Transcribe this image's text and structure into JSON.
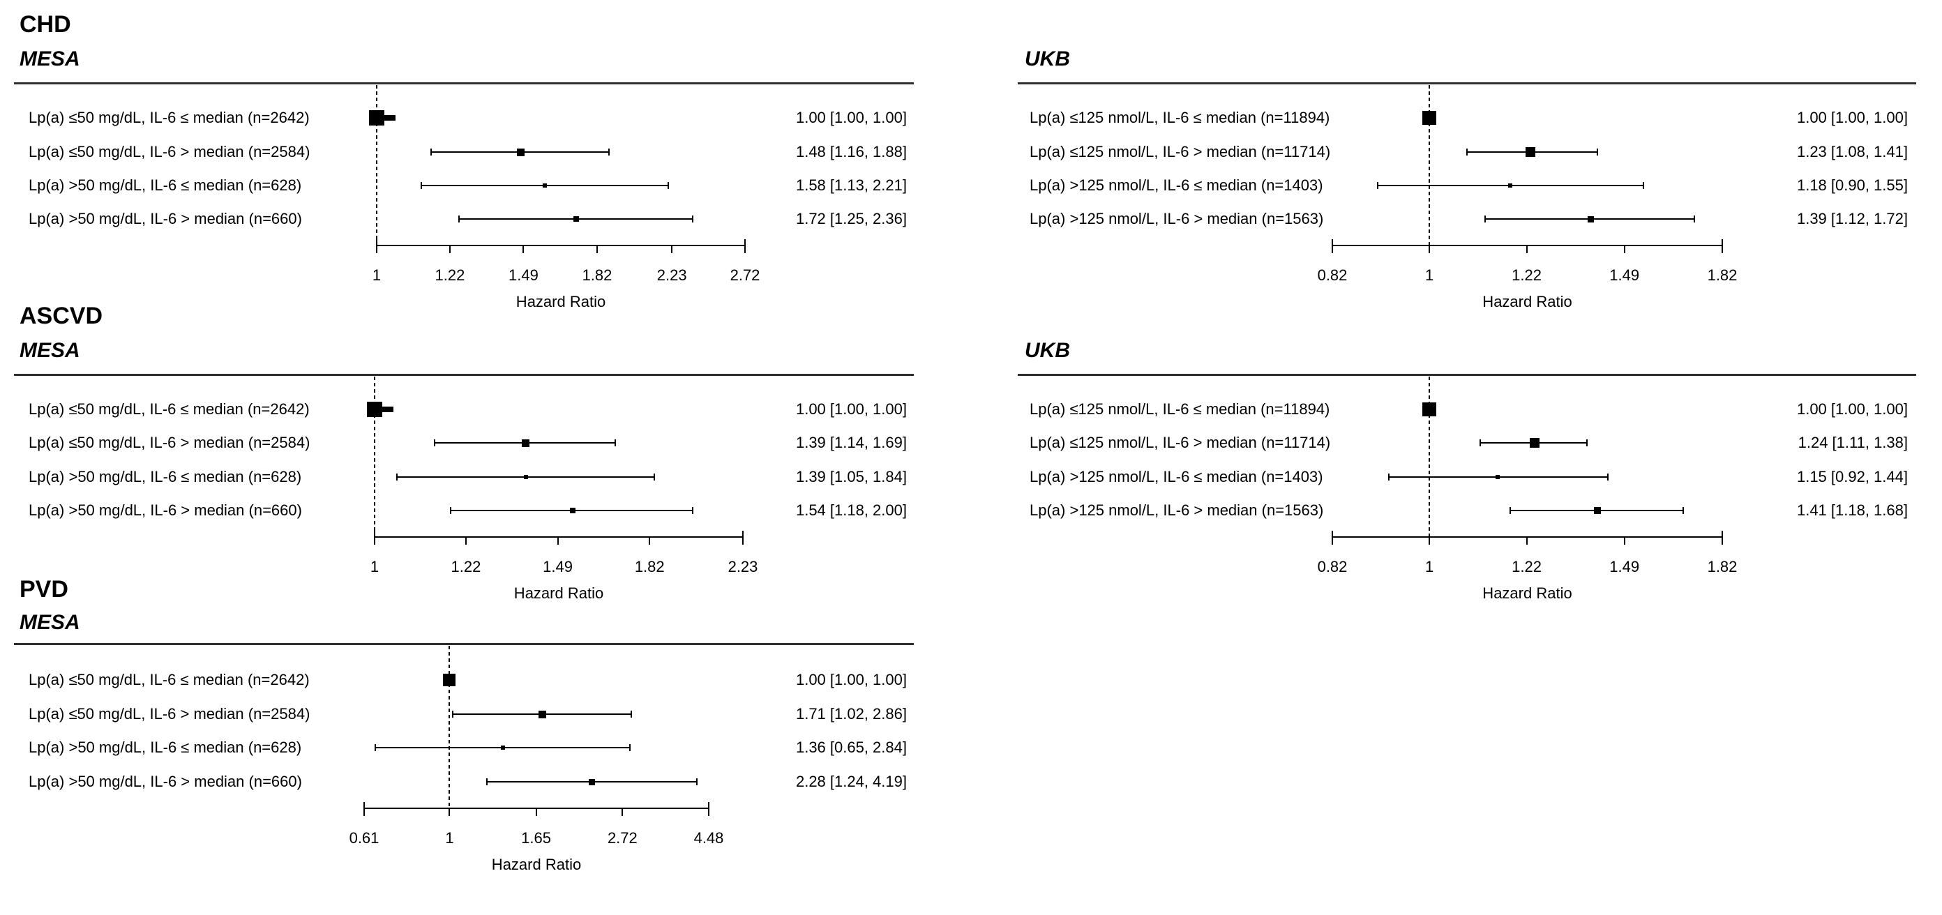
{
  "figure": {
    "background": "#ffffff",
    "text_color": "#000000",
    "marker_color": "#000000",
    "rule_color": "#2e2e2e"
  },
  "chart_data": [
    {
      "type": "scatter",
      "id": "chd-mesa",
      "outcome": "CHD",
      "cohort": "MESA",
      "xlabel": "Hazard Ratio",
      "scale": "log",
      "axis_ticks": [
        1,
        1.22,
        1.49,
        1.82,
        2.23,
        2.72
      ],
      "ref_value": 1,
      "rows": [
        {
          "label": "Lp(a) ≤50 mg/dL, IL-6 ≤ median (n=2642)",
          "est": 1.0,
          "lo": 1.0,
          "hi": 1.0,
          "text": "1.00 [1.00, 1.00]",
          "marker_size": 22,
          "nub": true
        },
        {
          "label": "Lp(a) ≤50 mg/dL, IL-6 > median (n=2584)",
          "est": 1.48,
          "lo": 1.16,
          "hi": 1.88,
          "text": "1.48 [1.16, 1.88]",
          "marker_size": 11,
          "nub": false
        },
        {
          "label": "Lp(a) >50 mg/dL, IL-6 ≤ median (n=628)",
          "est": 1.58,
          "lo": 1.13,
          "hi": 2.21,
          "text": "1.58 [1.13, 2.21]",
          "marker_size": 6,
          "nub": false
        },
        {
          "label": "Lp(a) >50 mg/dL, IL-6 > median (n=660)",
          "est": 1.72,
          "lo": 1.25,
          "hi": 2.36,
          "text": "1.72 [1.25, 2.36]",
          "marker_size": 8,
          "nub": false
        }
      ]
    },
    {
      "type": "scatter",
      "id": "chd-ukb",
      "outcome": "CHD",
      "cohort": "UKB",
      "xlabel": "Hazard Ratio",
      "scale": "log",
      "axis_ticks": [
        0.82,
        1,
        1.22,
        1.49,
        1.82
      ],
      "ref_value": 1,
      "rows": [
        {
          "label": "Lp(a) ≤125 nmol/L, IL-6 ≤ median (n=11894)",
          "est": 1.0,
          "lo": 1.0,
          "hi": 1.0,
          "text": "1.00 [1.00, 1.00]",
          "marker_size": 20,
          "nub": false
        },
        {
          "label": "Lp(a) ≤125 nmol/L, IL-6 > median (n=11714)",
          "est": 1.23,
          "lo": 1.08,
          "hi": 1.41,
          "text": "1.23 [1.08, 1.41]",
          "marker_size": 14,
          "nub": false
        },
        {
          "label": "Lp(a) >125 nmol/L, IL-6 ≤ median (n=1403)",
          "est": 1.18,
          "lo": 0.9,
          "hi": 1.55,
          "text": "1.18 [0.90, 1.55]",
          "marker_size": 6,
          "nub": false
        },
        {
          "label": "Lp(a) >125 nmol/L, IL-6 > median (n=1563)",
          "est": 1.39,
          "lo": 1.12,
          "hi": 1.72,
          "text": "1.39 [1.12, 1.72]",
          "marker_size": 9,
          "nub": false
        }
      ]
    },
    {
      "type": "scatter",
      "id": "ascvd-mesa",
      "outcome": "ASCVD",
      "cohort": "MESA",
      "xlabel": "Hazard Ratio",
      "scale": "log",
      "axis_ticks": [
        1,
        1.22,
        1.49,
        1.82,
        2.23
      ],
      "ref_value": 1,
      "rows": [
        {
          "label": "Lp(a) ≤50 mg/dL, IL-6 ≤ median (n=2642)",
          "est": 1.0,
          "lo": 1.0,
          "hi": 1.0,
          "text": "1.00 [1.00, 1.00]",
          "marker_size": 22,
          "nub": true
        },
        {
          "label": "Lp(a) ≤50 mg/dL, IL-6 > median (n=2584)",
          "est": 1.39,
          "lo": 1.14,
          "hi": 1.69,
          "text": "1.39 [1.14, 1.69]",
          "marker_size": 11,
          "nub": false
        },
        {
          "label": "Lp(a) >50 mg/dL, IL-6 ≤ median (n=628)",
          "est": 1.39,
          "lo": 1.05,
          "hi": 1.84,
          "text": "1.39 [1.05, 1.84]",
          "marker_size": 6,
          "nub": false
        },
        {
          "label": "Lp(a) >50 mg/dL, IL-6 > median (n=660)",
          "est": 1.54,
          "lo": 1.18,
          "hi": 2.0,
          "text": "1.54 [1.18, 2.00]",
          "marker_size": 8,
          "nub": false
        }
      ]
    },
    {
      "type": "scatter",
      "id": "ascvd-ukb",
      "outcome": "ASCVD",
      "cohort": "UKB",
      "xlabel": "Hazard Ratio",
      "scale": "log",
      "axis_ticks": [
        0.82,
        1,
        1.22,
        1.49,
        1.82
      ],
      "ref_value": 1,
      "rows": [
        {
          "label": "Lp(a) ≤125 nmol/L, IL-6 ≤ median (n=11894)",
          "est": 1.0,
          "lo": 1.0,
          "hi": 1.0,
          "text": "1.00 [1.00, 1.00]",
          "marker_size": 20,
          "nub": false
        },
        {
          "label": "Lp(a) ≤125 nmol/L, IL-6 > median (n=11714)",
          "est": 1.24,
          "lo": 1.11,
          "hi": 1.38,
          "text": "1.24 [1.11, 1.38]",
          "marker_size": 14,
          "nub": false
        },
        {
          "label": "Lp(a) >125 nmol/L, IL-6 ≤ median (n=1403)",
          "est": 1.15,
          "lo": 0.92,
          "hi": 1.44,
          "text": "1.15 [0.92, 1.44]",
          "marker_size": 6,
          "nub": false
        },
        {
          "label": "Lp(a) >125 nmol/L, IL-6 > median (n=1563)",
          "est": 1.41,
          "lo": 1.18,
          "hi": 1.68,
          "text": "1.41 [1.18, 1.68]",
          "marker_size": 10,
          "nub": false
        }
      ]
    },
    {
      "type": "scatter",
      "id": "pvd-mesa",
      "outcome": "PVD",
      "cohort": "MESA",
      "xlabel": "Hazard Ratio",
      "scale": "log",
      "axis_ticks": [
        0.61,
        1,
        1.65,
        2.72,
        4.48
      ],
      "ref_value": 1,
      "rows": [
        {
          "label": "Lp(a) ≤50 mg/dL, IL-6 ≤ median (n=2642)",
          "est": 1.0,
          "lo": 1.0,
          "hi": 1.0,
          "text": "1.00 [1.00, 1.00]",
          "marker_size": 18,
          "nub": false
        },
        {
          "label": "Lp(a) ≤50 mg/dL, IL-6 > median (n=2584)",
          "est": 1.71,
          "lo": 1.02,
          "hi": 2.86,
          "text": "1.71 [1.02, 2.86]",
          "marker_size": 11,
          "nub": false
        },
        {
          "label": "Lp(a) >50 mg/dL, IL-6 ≤ median (n=628)",
          "est": 1.36,
          "lo": 0.65,
          "hi": 2.84,
          "text": "1.36 [0.65, 2.84]",
          "marker_size": 6,
          "nub": false
        },
        {
          "label": "Lp(a) >50 mg/dL, IL-6 > median (n=660)",
          "est": 2.28,
          "lo": 1.24,
          "hi": 4.19,
          "text": "2.28 [1.24, 4.19]",
          "marker_size": 9,
          "nub": false
        }
      ]
    }
  ]
}
